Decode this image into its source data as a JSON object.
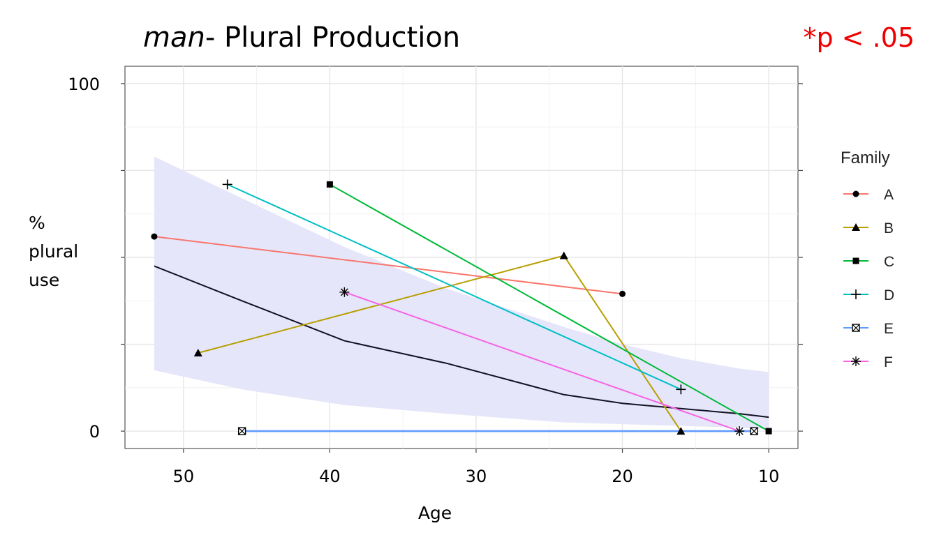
{
  "title": {
    "italic": "man",
    "rest": "- Plural Production"
  },
  "annotation": "*p < .05",
  "chart_data": {
    "type": "line",
    "xlabel": "Age",
    "ylabel_lines": [
      "%",
      "plural",
      "use"
    ],
    "xlim": [
      54,
      8
    ],
    "ylim": [
      -5,
      105
    ],
    "x_ticks": [
      50,
      40,
      30,
      20,
      10
    ],
    "y_tick_labels": [
      {
        "value": 0,
        "label": "0"
      },
      {
        "value": 100,
        "label": "100"
      }
    ],
    "x_reversed": true,
    "grid": true,
    "legend": {
      "title": "Family",
      "position": "right"
    },
    "colors": {
      "A": "#f8766d",
      "B": "#b79f00",
      "C": "#00ba38",
      "D": "#00bfc4",
      "E": "#619cff",
      "F": "#f564e3",
      "trend": "#111122",
      "band": "#e6e6fb"
    },
    "series": [
      {
        "name": "A",
        "marker": "circle",
        "x": [
          52,
          20
        ],
        "y": [
          56,
          39.5
        ]
      },
      {
        "name": "B",
        "marker": "triangle",
        "x": [
          49,
          24,
          16
        ],
        "y": [
          22.5,
          50.5,
          0
        ]
      },
      {
        "name": "C",
        "marker": "square",
        "x": [
          40,
          10
        ],
        "y": [
          71,
          0
        ]
      },
      {
        "name": "D",
        "marker": "plus",
        "x": [
          47,
          16
        ],
        "y": [
          71,
          12
        ]
      },
      {
        "name": "E",
        "marker": "boxcross",
        "x": [
          46,
          11
        ],
        "y": [
          0,
          0
        ]
      },
      {
        "name": "F",
        "marker": "asterisk",
        "x": [
          39,
          12
        ],
        "y": [
          40,
          0
        ]
      }
    ],
    "trend": {
      "x": [
        52,
        46,
        39,
        32,
        24,
        20,
        16,
        12,
        10
      ],
      "y": [
        47.5,
        37.5,
        26,
        19.5,
        10.5,
        8,
        6.5,
        5,
        4
      ],
      "ci_upper": [
        79,
        67,
        53,
        41,
        30,
        25,
        21,
        18,
        17
      ],
      "ci_lower": [
        17.5,
        12,
        7.5,
        5,
        2.5,
        2,
        1.5,
        1,
        0.5
      ]
    }
  }
}
